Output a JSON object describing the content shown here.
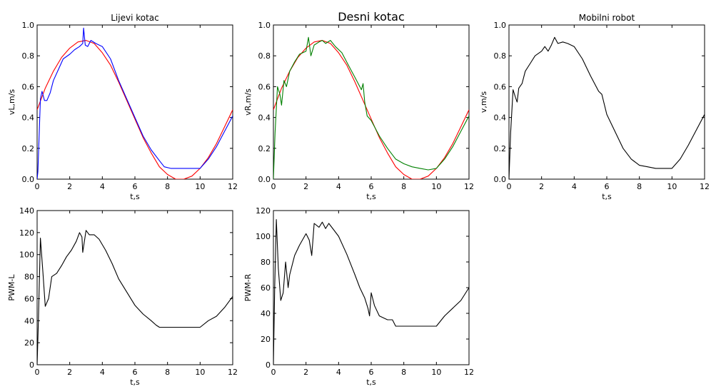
{
  "chart_data": [
    {
      "type": "line",
      "title": "Lijevi kotac",
      "xlabel": "t,s",
      "ylabel": "vL,m/s",
      "xlim": [
        0,
        12
      ],
      "ylim": [
        0,
        1.0
      ],
      "xticks": [
        0,
        2,
        4,
        6,
        8,
        10,
        12
      ],
      "yticks": [
        0.0,
        0.2,
        0.4,
        0.6,
        0.8,
        1.0
      ],
      "grid": false,
      "series": [
        {
          "color": "#ff0000",
          "x": [
            0,
            0.5,
            1,
            1.5,
            2,
            2.5,
            3,
            3.5,
            4,
            4.5,
            5,
            5.5,
            6,
            6.5,
            7,
            7.5,
            8,
            8.5,
            9,
            9.5,
            10,
            10.5,
            11,
            11.5,
            12
          ],
          "y": [
            0.45,
            0.59,
            0.7,
            0.79,
            0.85,
            0.89,
            0.9,
            0.88,
            0.82,
            0.74,
            0.63,
            0.51,
            0.39,
            0.27,
            0.17,
            0.08,
            0.03,
            0.0,
            0.0,
            0.02,
            0.07,
            0.14,
            0.23,
            0.34,
            0.45
          ]
        },
        {
          "color": "#0000ff",
          "x": [
            0,
            0.05,
            0.2,
            0.3,
            0.45,
            0.6,
            0.8,
            1.0,
            1.3,
            1.6,
            2.0,
            2.3,
            2.6,
            2.8,
            2.85,
            2.95,
            3.1,
            3.3,
            3.6,
            4.0,
            4.5,
            5.0,
            5.5,
            6.0,
            6.5,
            7.0,
            7.5,
            7.8,
            8.2,
            9.0,
            9.5,
            10.0,
            10.5,
            11.0,
            11.5,
            12.0
          ],
          "y": [
            0.0,
            0.05,
            0.52,
            0.57,
            0.51,
            0.51,
            0.56,
            0.64,
            0.71,
            0.78,
            0.81,
            0.84,
            0.86,
            0.88,
            0.98,
            0.87,
            0.86,
            0.9,
            0.88,
            0.86,
            0.78,
            0.64,
            0.52,
            0.4,
            0.28,
            0.19,
            0.12,
            0.08,
            0.07,
            0.07,
            0.07,
            0.07,
            0.13,
            0.21,
            0.31,
            0.41
          ]
        }
      ]
    },
    {
      "type": "line",
      "title": "Desni kotac",
      "xlabel": "t,s",
      "ylabel": "vR,m/s",
      "xlim": [
        0,
        12
      ],
      "ylim": [
        0,
        1.0
      ],
      "xticks": [
        0,
        2,
        4,
        6,
        8,
        10,
        12
      ],
      "yticks": [
        0.0,
        0.2,
        0.4,
        0.6,
        0.8,
        1.0
      ],
      "grid": false,
      "series": [
        {
          "color": "#ff0000",
          "x": [
            0,
            0.5,
            1,
            1.5,
            2,
            2.5,
            3,
            3.5,
            4,
            4.5,
            5,
            5.5,
            6,
            6.5,
            7,
            7.5,
            8,
            8.5,
            9,
            9.5,
            10,
            10.5,
            11,
            11.5,
            12
          ],
          "y": [
            0.45,
            0.59,
            0.7,
            0.79,
            0.85,
            0.89,
            0.9,
            0.88,
            0.82,
            0.74,
            0.63,
            0.51,
            0.39,
            0.27,
            0.17,
            0.08,
            0.03,
            0.0,
            0.0,
            0.02,
            0.07,
            0.14,
            0.23,
            0.34,
            0.45
          ]
        },
        {
          "color": "#008000",
          "x": [
            0,
            0.1,
            0.25,
            0.4,
            0.5,
            0.65,
            0.8,
            1.0,
            1.3,
            1.6,
            2.0,
            2.15,
            2.3,
            2.5,
            2.8,
            3.0,
            3.2,
            3.5,
            3.8,
            4.2,
            4.6,
            5.0,
            5.4,
            5.5,
            5.6,
            5.75,
            6.0,
            6.5,
            7.0,
            7.5,
            8.0,
            8.5,
            9.0,
            9.5,
            10.0,
            10.5,
            11.0,
            11.5,
            12.0
          ],
          "y": [
            0.0,
            0.3,
            0.6,
            0.55,
            0.48,
            0.64,
            0.6,
            0.7,
            0.76,
            0.81,
            0.83,
            0.92,
            0.8,
            0.87,
            0.89,
            0.9,
            0.88,
            0.9,
            0.86,
            0.82,
            0.74,
            0.66,
            0.58,
            0.62,
            0.5,
            0.41,
            0.38,
            0.28,
            0.2,
            0.13,
            0.1,
            0.08,
            0.07,
            0.06,
            0.07,
            0.13,
            0.21,
            0.31,
            0.41
          ]
        }
      ]
    },
    {
      "type": "line",
      "title": "Mobilni robot",
      "xlabel": "t,s",
      "ylabel": "v,m/s",
      "xlim": [
        0,
        12
      ],
      "ylim": [
        0,
        1.0
      ],
      "xticks": [
        0,
        2,
        4,
        6,
        8,
        10,
        12
      ],
      "yticks": [
        0.0,
        0.2,
        0.4,
        0.6,
        0.8,
        1.0
      ],
      "grid": false,
      "series": [
        {
          "color": "#000000",
          "x": [
            0,
            0.1,
            0.25,
            0.4,
            0.5,
            0.6,
            0.8,
            1.0,
            1.3,
            1.6,
            2.0,
            2.2,
            2.4,
            2.6,
            2.8,
            3.0,
            3.3,
            3.6,
            4.0,
            4.5,
            5.0,
            5.5,
            5.7,
            6.0,
            6.5,
            7.0,
            7.5,
            8.0,
            8.5,
            9.0,
            9.5,
            10.0,
            10.5,
            11.0,
            11.5,
            12.0
          ],
          "y": [
            0.0,
            0.3,
            0.58,
            0.53,
            0.5,
            0.59,
            0.62,
            0.7,
            0.75,
            0.8,
            0.83,
            0.86,
            0.83,
            0.87,
            0.92,
            0.88,
            0.89,
            0.88,
            0.86,
            0.78,
            0.67,
            0.57,
            0.55,
            0.42,
            0.31,
            0.2,
            0.13,
            0.09,
            0.08,
            0.07,
            0.07,
            0.07,
            0.13,
            0.22,
            0.32,
            0.42
          ]
        }
      ]
    },
    {
      "type": "line",
      "title": "",
      "xlabel": "t,s",
      "ylabel": "PWM-L",
      "xlim": [
        0,
        12
      ],
      "ylim": [
        0,
        140
      ],
      "xticks": [
        0,
        2,
        4,
        6,
        8,
        10,
        12
      ],
      "yticks": [
        0,
        20,
        40,
        60,
        80,
        100,
        120,
        140
      ],
      "grid": false,
      "series": [
        {
          "color": "#000000",
          "x": [
            0,
            0.08,
            0.2,
            0.35,
            0.5,
            0.7,
            0.9,
            1.2,
            1.5,
            1.8,
            2.1,
            2.4,
            2.6,
            2.75,
            2.8,
            3.0,
            3.2,
            3.5,
            3.8,
            4.2,
            4.6,
            5.0,
            5.5,
            6.0,
            6.5,
            7.0,
            7.3,
            7.5,
            8.0,
            8.5,
            9.0,
            9.5,
            10.0,
            10.5,
            11.0,
            11.5,
            12.0
          ],
          "y": [
            0,
            40,
            115,
            85,
            53,
            60,
            80,
            83,
            90,
            98,
            104,
            112,
            120,
            116,
            102,
            122,
            118,
            118,
            114,
            104,
            92,
            78,
            66,
            54,
            46,
            40,
            36,
            34,
            34,
            34,
            34,
            34,
            34,
            40,
            44,
            52,
            62
          ]
        }
      ]
    },
    {
      "type": "line",
      "title": "",
      "xlabel": "t,s",
      "ylabel": "PWM-R",
      "xlim": [
        0,
        12
      ],
      "ylim": [
        0,
        120
      ],
      "xticks": [
        0,
        2,
        4,
        6,
        8,
        10,
        12
      ],
      "yticks": [
        0,
        20,
        40,
        60,
        80,
        100,
        120
      ],
      "grid": false,
      "series": [
        {
          "color": "#000000",
          "x": [
            0,
            0.08,
            0.18,
            0.3,
            0.45,
            0.6,
            0.75,
            0.9,
            1.0,
            1.3,
            1.6,
            2.0,
            2.2,
            2.35,
            2.5,
            2.8,
            3.0,
            3.2,
            3.4,
            3.7,
            4.0,
            4.5,
            5.0,
            5.3,
            5.6,
            5.8,
            5.9,
            6.0,
            6.2,
            6.5,
            7.0,
            7.3,
            7.5,
            7.6,
            8.0,
            8.5,
            9.0,
            9.5,
            10.0,
            10.5,
            11.0,
            11.5,
            12.0
          ],
          "y": [
            0,
            60,
            113,
            75,
            50,
            56,
            80,
            60,
            70,
            85,
            93,
            102,
            97,
            85,
            110,
            107,
            111,
            106,
            110,
            105,
            100,
            86,
            70,
            60,
            52,
            44,
            38,
            56,
            46,
            38,
            35,
            35,
            30,
            30,
            30,
            30,
            30,
            30,
            30,
            38,
            44,
            50,
            60
          ]
        }
      ]
    }
  ]
}
